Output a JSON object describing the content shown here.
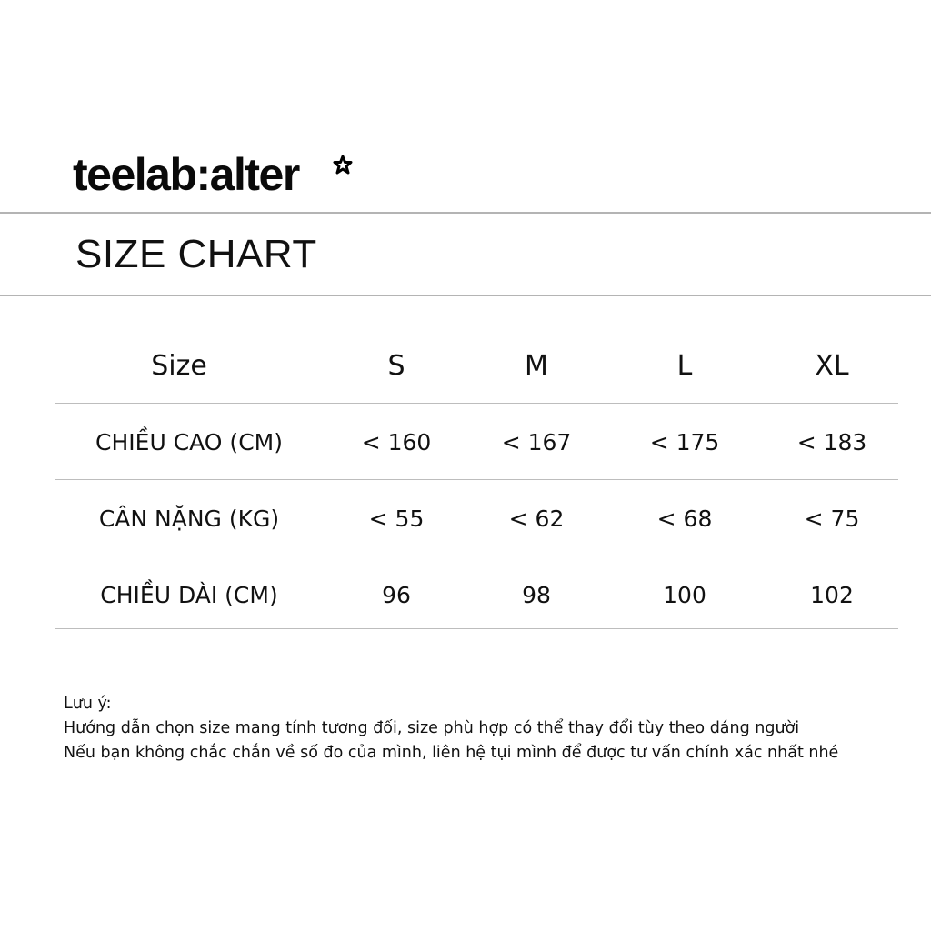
{
  "brand": {
    "logo_text": "teelab:alter",
    "logo_icon": "star-icon"
  },
  "title": "SIZE CHART",
  "table": {
    "headers": [
      "Size",
      "S",
      "M",
      "L",
      "XL"
    ],
    "rows": [
      {
        "label": "CHIỀU CAO (CM)",
        "values": [
          "< 160",
          "< 167",
          "< 175",
          "< 183"
        ]
      },
      {
        "label": "CÂN NẶNG (KG)",
        "values": [
          "< 55",
          "< 62",
          "< 68",
          "< 75"
        ]
      },
      {
        "label": "CHIỀU DÀI (CM)",
        "values": [
          "96",
          "98",
          "100",
          "102"
        ]
      }
    ]
  },
  "notes": [
    "Lưu ý:",
    "Hướng dẫn chọn size mang tính tương đối, size phù hợp có thể thay đổi tùy theo dáng người",
    "Nếu bạn không chắc chắn về số đo của mình, liên hệ tụi mình để được tư vấn chính xác nhất nhé"
  ]
}
